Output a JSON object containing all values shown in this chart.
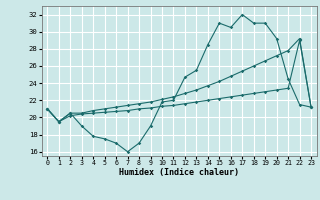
{
  "xlabel": "Humidex (Indice chaleur)",
  "bg_color": "#cce8e8",
  "grid_color": "#ffffff",
  "line_color": "#1a6b6b",
  "xlim": [
    -0.5,
    23.5
  ],
  "ylim": [
    15.5,
    33.0
  ],
  "xticks": [
    0,
    1,
    2,
    3,
    4,
    5,
    6,
    7,
    8,
    9,
    10,
    11,
    12,
    13,
    14,
    15,
    16,
    17,
    18,
    19,
    20,
    21,
    22,
    23
  ],
  "yticks": [
    16,
    18,
    20,
    22,
    24,
    26,
    28,
    30,
    32
  ],
  "series1_x": [
    0,
    1,
    2,
    3,
    4,
    5,
    6,
    7,
    8,
    9,
    10,
    11,
    12,
    13,
    14,
    15,
    16,
    17,
    18,
    19,
    20,
    21,
    22,
    23
  ],
  "series1_y": [
    21.0,
    19.5,
    20.5,
    19.0,
    17.8,
    17.5,
    17.0,
    16.0,
    17.0,
    19.0,
    21.8,
    22.0,
    24.7,
    25.5,
    28.5,
    31.0,
    30.5,
    32.0,
    31.0,
    31.0,
    29.2,
    24.5,
    21.5,
    21.2
  ],
  "series2_x": [
    0,
    1,
    2,
    3,
    4,
    5,
    6,
    7,
    8,
    9,
    10,
    11,
    12,
    13,
    14,
    15,
    16,
    17,
    18,
    19,
    20,
    21,
    22,
    23
  ],
  "series2_y": [
    21.0,
    19.5,
    20.2,
    20.4,
    20.5,
    20.6,
    20.7,
    20.8,
    21.0,
    21.1,
    21.3,
    21.4,
    21.6,
    21.8,
    22.0,
    22.2,
    22.4,
    22.6,
    22.8,
    23.0,
    23.2,
    23.4,
    29.0,
    21.2
  ],
  "series3_x": [
    0,
    1,
    2,
    3,
    4,
    5,
    6,
    7,
    8,
    9,
    10,
    11,
    12,
    13,
    14,
    15,
    16,
    17,
    18,
    19,
    20,
    21,
    22,
    23
  ],
  "series3_y": [
    21.0,
    19.5,
    20.5,
    20.5,
    20.8,
    21.0,
    21.2,
    21.4,
    21.6,
    21.8,
    22.1,
    22.4,
    22.8,
    23.2,
    23.7,
    24.2,
    24.8,
    25.4,
    26.0,
    26.6,
    27.2,
    27.8,
    29.2,
    21.2
  ]
}
